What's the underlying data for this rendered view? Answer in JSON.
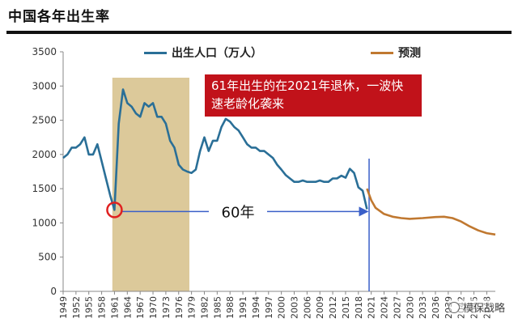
{
  "page": {
    "title": "中国各年出生率"
  },
  "colors": {
    "actual": "#2a6f97",
    "forecast": "#c07830",
    "highlight_band": "#dcc99a",
    "annotation_bg": "#c1121a",
    "marker": "#e02020",
    "divider": "#3a5fc8"
  },
  "chart_data": {
    "type": "line",
    "title": "",
    "xlabel": "",
    "ylabel": "",
    "ylim": [
      0,
      3500
    ],
    "yticks": [
      0,
      500,
      1000,
      1500,
      2000,
      2500,
      3000,
      3500
    ],
    "xticks": [
      "1949",
      "1952",
      "1955",
      "1958",
      "1961",
      "1964",
      "1967",
      "1970",
      "1973",
      "1976",
      "1979",
      "1982",
      "1985",
      "1988",
      "1991",
      "1994",
      "1997",
      "2000",
      "2003",
      "2006",
      "2009",
      "2012",
      "2015",
      "2018",
      "2021",
      "2024",
      "2027",
      "2030",
      "2033",
      "2036",
      "2039",
      "2042",
      "2045",
      "2048"
    ],
    "xlim": [
      1949,
      2050
    ],
    "legend_position": "top-center",
    "series": [
      {
        "name": "出生人口（万人）",
        "x": [
          1949,
          1950,
          1951,
          1952,
          1953,
          1954,
          1955,
          1956,
          1957,
          1958,
          1959,
          1960,
          1961,
          1962,
          1963,
          1964,
          1965,
          1966,
          1967,
          1968,
          1969,
          1970,
          1971,
          1972,
          1973,
          1974,
          1975,
          1976,
          1977,
          1978,
          1979,
          1980,
          1981,
          1982,
          1983,
          1984,
          1985,
          1986,
          1987,
          1988,
          1989,
          1990,
          1991,
          1992,
          1993,
          1994,
          1995,
          1996,
          1997,
          1998,
          1999,
          2000,
          2001,
          2002,
          2003,
          2004,
          2005,
          2006,
          2007,
          2008,
          2009,
          2010,
          2011,
          2012,
          2013,
          2014,
          2015,
          2016,
          2017,
          2018,
          2019,
          2020
        ],
        "values": [
          1950,
          2000,
          2100,
          2100,
          2150,
          2250,
          2000,
          2000,
          2150,
          1900,
          1650,
          1400,
          1190,
          2450,
          2950,
          2750,
          2700,
          2600,
          2550,
          2750,
          2700,
          2750,
          2550,
          2550,
          2450,
          2200,
          2100,
          1850,
          1780,
          1750,
          1730,
          1780,
          2050,
          2250,
          2050,
          2200,
          2200,
          2400,
          2520,
          2480,
          2400,
          2350,
          2250,
          2150,
          2100,
          2100,
          2050,
          2050,
          2000,
          1950,
          1850,
          1780,
          1700,
          1650,
          1600,
          1600,
          1620,
          1600,
          1600,
          1600,
          1620,
          1600,
          1600,
          1650,
          1650,
          1690,
          1660,
          1790,
          1730,
          1520,
          1470,
          1200
        ],
        "style": "solid"
      },
      {
        "name": "预测",
        "x": [
          2020,
          2021,
          2022,
          2024,
          2026,
          2028,
          2030,
          2033,
          2036,
          2038,
          2040,
          2042,
          2044,
          2046,
          2048,
          2050
        ],
        "values": [
          1500,
          1330,
          1220,
          1130,
          1090,
          1070,
          1060,
          1070,
          1085,
          1090,
          1070,
          1020,
          950,
          890,
          850,
          830
        ],
        "style": "solid"
      }
    ],
    "highlight_band": {
      "x_start": 1960.5,
      "x_end": 1978.5
    },
    "marker": {
      "x": 1961,
      "y": 1190
    },
    "divider_x": 2020.5,
    "span_label": "60年",
    "annotation": "61年出生的在2021年退休，一波快速老龄化袭来"
  },
  "watermark": "模保战略"
}
